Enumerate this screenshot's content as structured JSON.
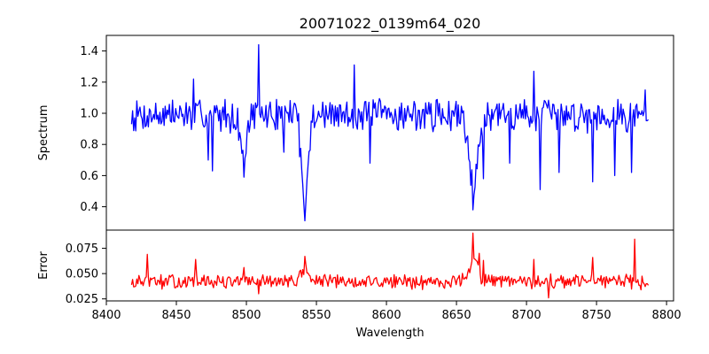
{
  "chart_data": {
    "type": "line",
    "title": "20071022_0139m64_020",
    "xlabel": "Wavelength",
    "xlim": [
      8400,
      8805
    ],
    "x_ticks": [
      "8400",
      "8450",
      "8500",
      "8550",
      "8600",
      "8650",
      "8700",
      "8750",
      "8800"
    ],
    "x_tick_values": [
      8400,
      8450,
      8500,
      8550,
      8600,
      8650,
      8700,
      8750,
      8800
    ],
    "grid": false,
    "panels": [
      {
        "id": "spectrum",
        "ylabel": "Spectrum",
        "ylim": [
          0.25,
          1.5
        ],
        "y_ticks": [
          "0.4",
          "0.6",
          "0.8",
          "1.0",
          "1.2",
          "1.4"
        ],
        "y_tick_values": [
          0.4,
          0.6,
          0.8,
          1.0,
          1.2,
          1.4
        ],
        "color": "#0000ff",
        "x_start": 8418,
        "x_end": 8787,
        "base": 0.99,
        "noise": 0.12,
        "seed": 7,
        "features": [
          {
            "x": 8462,
            "y": 1.22
          },
          {
            "x": 8473,
            "y": 0.7
          },
          {
            "x": 8476,
            "y": 0.63
          },
          {
            "x": 8498,
            "y": 0.59
          },
          {
            "x": 8509,
            "y": 1.44
          },
          {
            "x": 8527,
            "y": 0.75
          },
          {
            "x": 8538,
            "y": 0.72
          },
          {
            "x": 8542,
            "y": 0.31
          },
          {
            "x": 8577,
            "y": 1.31
          },
          {
            "x": 8588,
            "y": 0.68
          },
          {
            "x": 8662,
            "y": 0.38
          },
          {
            "x": 8669,
            "y": 0.58
          },
          {
            "x": 8688,
            "y": 0.68
          },
          {
            "x": 8705,
            "y": 1.27
          },
          {
            "x": 8710,
            "y": 0.51
          },
          {
            "x": 8723,
            "y": 0.62
          },
          {
            "x": 8747,
            "y": 0.56
          },
          {
            "x": 8763,
            "y": 0.6
          },
          {
            "x": 8775,
            "y": 0.62
          },
          {
            "x": 8785,
            "y": 1.15
          }
        ],
        "dips": [
          {
            "center": 8498,
            "depth": 0.25,
            "width": 3
          },
          {
            "center": 8542,
            "depth": 0.55,
            "width": 3
          },
          {
            "center": 8662,
            "depth": 0.45,
            "width": 4
          }
        ]
      },
      {
        "id": "error",
        "ylabel": "Error",
        "ylim": [
          0.023,
          0.093
        ],
        "y_ticks": [
          "0.025",
          "0.050",
          "0.075"
        ],
        "y_tick_values": [
          0.025,
          0.05,
          0.075
        ],
        "color": "#ff0000",
        "x_start": 8418,
        "x_end": 8787,
        "base": 0.042,
        "noise": 0.008,
        "seed": 13,
        "features": [
          {
            "x": 8420,
            "y": 0.037
          },
          {
            "x": 8429,
            "y": 0.069
          },
          {
            "x": 8464,
            "y": 0.064
          },
          {
            "x": 8498,
            "y": 0.056
          },
          {
            "x": 8509,
            "y": 0.03
          },
          {
            "x": 8542,
            "y": 0.067
          },
          {
            "x": 8662,
            "y": 0.09
          },
          {
            "x": 8666,
            "y": 0.07
          },
          {
            "x": 8669,
            "y": 0.063
          },
          {
            "x": 8705,
            "y": 0.064
          },
          {
            "x": 8716,
            "y": 0.026
          },
          {
            "x": 8747,
            "y": 0.066
          },
          {
            "x": 8777,
            "y": 0.084
          },
          {
            "x": 8782,
            "y": 0.034
          },
          {
            "x": 8786,
            "y": 0.04
          }
        ],
        "dips": [
          {
            "center": 8542,
            "depth": -0.012,
            "width": 4
          },
          {
            "center": 8662,
            "depth": -0.02,
            "width": 5
          }
        ]
      }
    ]
  }
}
